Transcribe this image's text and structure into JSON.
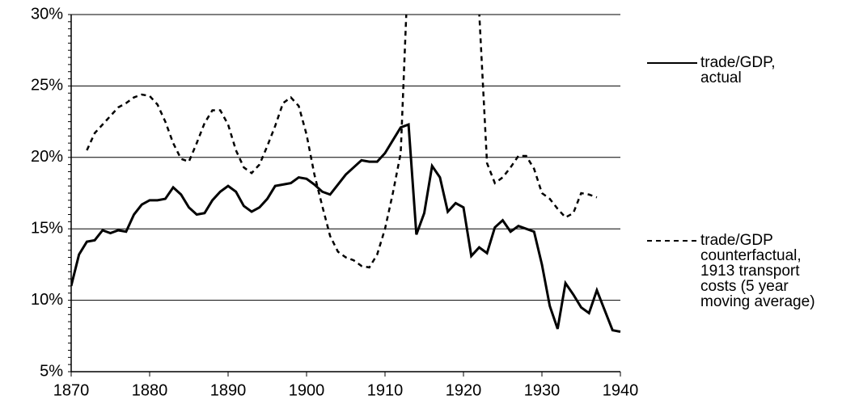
{
  "chart_data": {
    "type": "line",
    "x": [
      1870,
      1871,
      1872,
      1873,
      1874,
      1875,
      1876,
      1877,
      1878,
      1879,
      1880,
      1881,
      1882,
      1883,
      1884,
      1885,
      1886,
      1887,
      1888,
      1889,
      1890,
      1891,
      1892,
      1893,
      1894,
      1895,
      1896,
      1897,
      1898,
      1899,
      1900,
      1901,
      1902,
      1903,
      1904,
      1905,
      1906,
      1907,
      1908,
      1909,
      1910,
      1911,
      1912,
      1913,
      1914,
      1915,
      1916,
      1917,
      1918,
      1919,
      1920,
      1921,
      1922,
      1923,
      1924,
      1925,
      1926,
      1927,
      1928,
      1929,
      1930,
      1931,
      1932,
      1933,
      1934,
      1935,
      1936,
      1937,
      1938,
      1939,
      1940
    ],
    "series": [
      {
        "name": "trade/GDP, actual",
        "color": "#000000",
        "dash": false,
        "values": [
          11.0,
          13.2,
          14.1,
          14.2,
          14.9,
          14.7,
          14.9,
          14.8,
          16.0,
          16.7,
          17.0,
          17.0,
          17.1,
          17.9,
          17.4,
          16.5,
          16.0,
          16.1,
          17.0,
          17.6,
          18.0,
          17.6,
          16.6,
          16.2,
          16.5,
          17.1,
          18.0,
          18.1,
          18.2,
          18.6,
          18.5,
          18.1,
          17.6,
          17.4,
          18.1,
          18.8,
          19.3,
          19.8,
          19.7,
          19.7,
          20.3,
          21.2,
          22.1,
          22.3,
          14.6,
          16.1,
          19.4,
          18.6,
          16.2,
          16.8,
          16.5,
          13.1,
          13.7,
          13.3,
          15.1,
          15.6,
          14.8,
          15.2,
          15.0,
          14.8,
          12.5,
          9.6,
          8.0,
          11.2,
          10.4,
          9.5,
          9.1,
          10.7,
          9.3,
          7.9,
          7.8
        ]
      },
      {
        "name": "trade/GDP counterfactual, 1913 transport costs (5 year moving average)",
        "color": "#000000",
        "dash": true,
        "values": [
          null,
          null,
          20.5,
          21.7,
          22.3,
          22.9,
          23.5,
          23.8,
          24.2,
          24.4,
          24.3,
          23.7,
          22.5,
          21.0,
          19.9,
          19.7,
          21.0,
          22.4,
          23.3,
          23.3,
          22.3,
          20.5,
          19.3,
          18.9,
          19.5,
          20.8,
          22.2,
          23.8,
          24.2,
          23.6,
          21.6,
          18.8,
          16.6,
          14.5,
          13.4,
          13.0,
          12.8,
          12.4,
          12.3,
          13.2,
          15.0,
          17.5,
          20.3,
          34.0,
          null,
          null,
          null,
          null,
          null,
          null,
          null,
          null,
          30.2,
          19.6,
          18.2,
          18.6,
          19.3,
          20.1,
          20.1,
          19.2,
          17.5,
          17.1,
          16.4,
          15.8,
          16.1,
          17.5,
          17.4,
          17.2,
          null,
          null,
          null
        ]
      }
    ],
    "xlim": [
      1870,
      1940
    ],
    "xticks": [
      1870,
      1880,
      1890,
      1900,
      1910,
      1920,
      1930,
      1940
    ],
    "ylim": [
      5,
      30
    ],
    "yticks": [
      {
        "value": 5,
        "label": "5%"
      },
      {
        "value": 10,
        "label": "10%"
      },
      {
        "value": 15,
        "label": "15%"
      },
      {
        "value": 20,
        "label": "20%"
      },
      {
        "value": 25,
        "label": "25%"
      },
      {
        "value": 30,
        "label": "30%"
      }
    ],
    "grid": true
  }
}
